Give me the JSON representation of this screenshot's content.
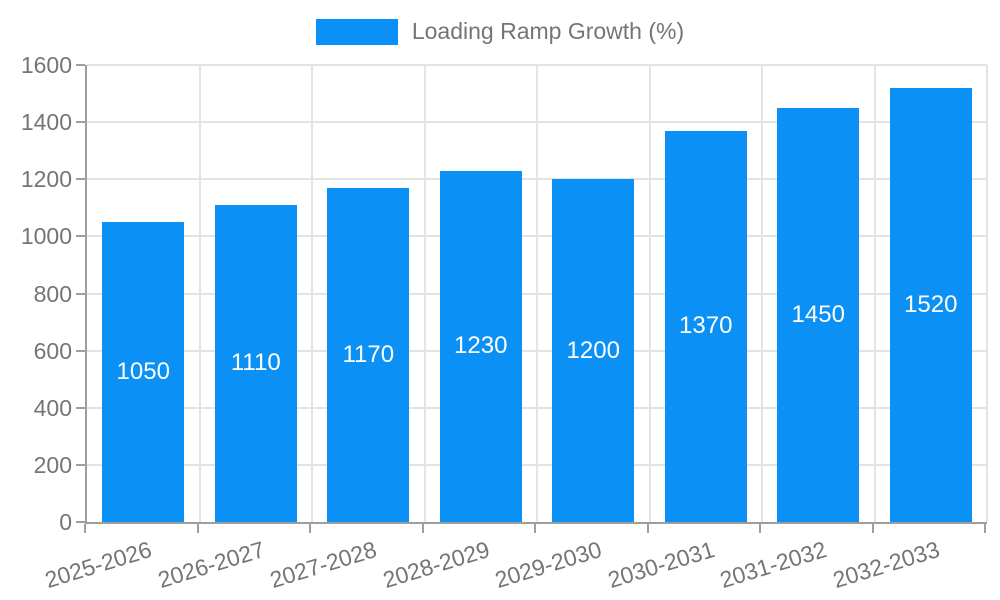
{
  "chart_data": {
    "type": "bar",
    "title": "",
    "legend": "Loading Ramp Growth (%)",
    "legend_position": "top-center",
    "categories": [
      "2025-2026",
      "2026-2027",
      "2027-2028",
      "2028-2029",
      "2029-2030",
      "2030-2031",
      "2031-2032",
      "2032-2033"
    ],
    "values": [
      1050,
      1110,
      1170,
      1230,
      1200,
      1370,
      1450,
      1520
    ],
    "xlabel": "",
    "ylabel": "",
    "ylim": [
      0,
      1600
    ],
    "yticks": [
      0,
      200,
      400,
      600,
      800,
      1000,
      1200,
      1400,
      1600
    ],
    "grid": true,
    "colors": {
      "bar": "#0b90f5",
      "axis": "#9e9e9e",
      "grid": "#e3e3e3",
      "tick_text": "#757575",
      "value_label": "#ffffff",
      "background": "#ffffff"
    }
  }
}
